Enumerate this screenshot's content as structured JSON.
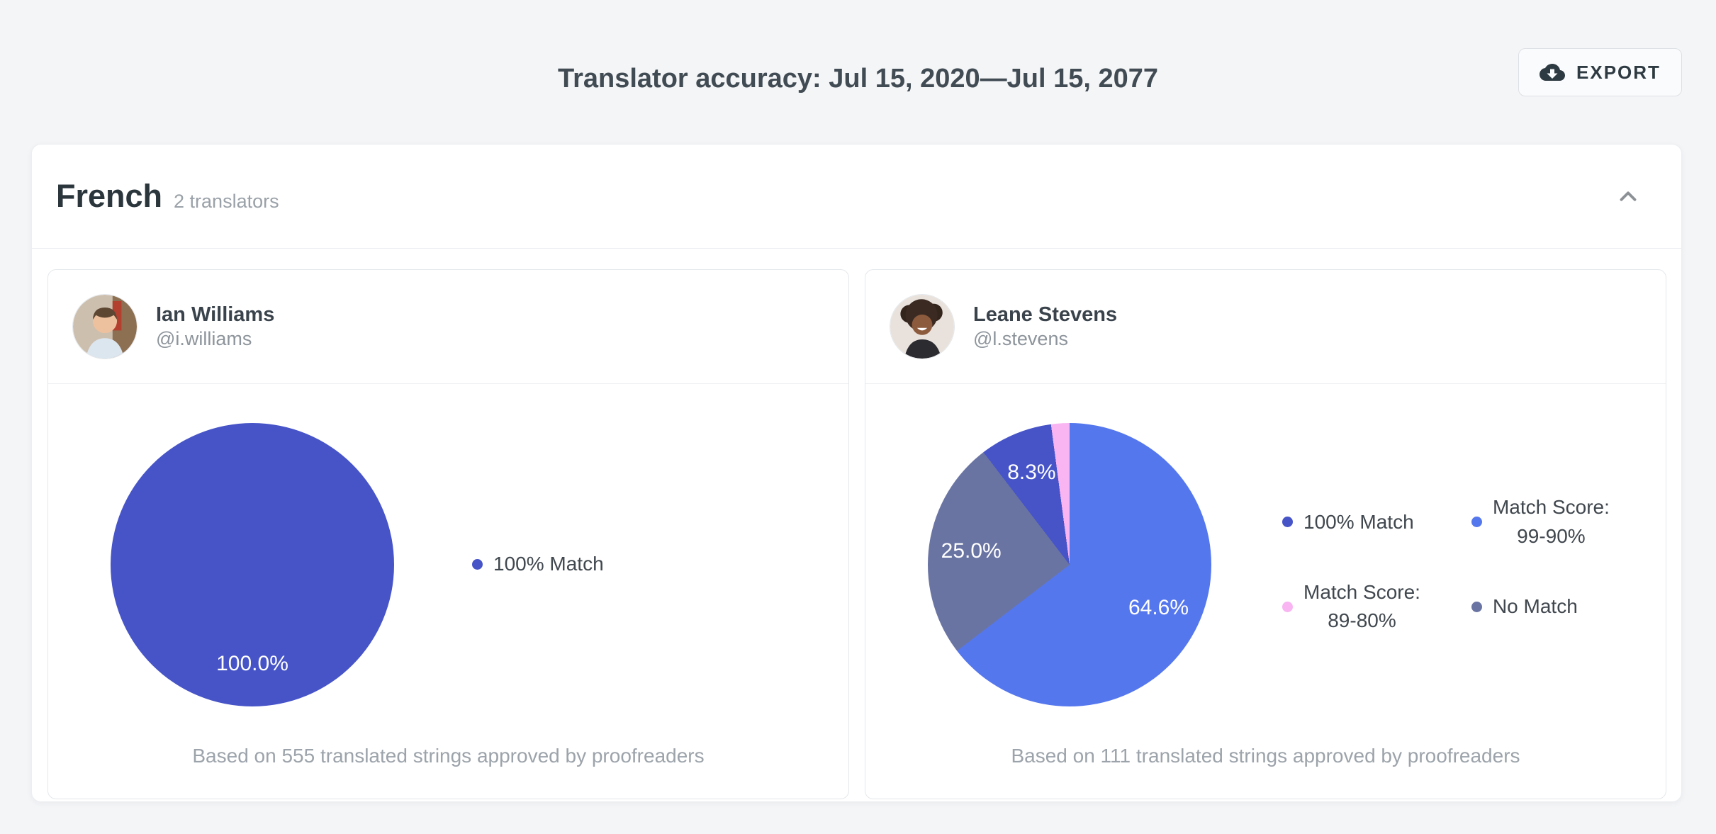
{
  "header": {
    "title": "Translator accuracy: Jul 15, 2020—Jul 15, 2077",
    "export_label": "EXPORT",
    "export_icon": "cloud-download-icon"
  },
  "language": {
    "name": "French",
    "translators_label": "2 translators",
    "collapse_icon": "chevron-up-icon"
  },
  "colors": {
    "match_100": "#4654C8",
    "match_99_90": "#5577EE",
    "match_89_80": "#F8B5F2",
    "no_match": "#6A74A3",
    "page_background": "#F4F5F7"
  },
  "translators": [
    {
      "name": "Ian Williams",
      "username": "@i.williams",
      "footer": "Based on 555 translated strings approved by proofreaders"
    },
    {
      "name": "Leane Stevens",
      "username": "@l.stevens",
      "footer": "Based on 111 translated strings approved by proofreaders"
    }
  ],
  "chart_data": [
    {
      "type": "pie",
      "translator": "Ian Williams",
      "slices": [
        {
          "name": "100% Match",
          "value": 100.0,
          "label": "100.0%",
          "color": "#4654C8"
        }
      ],
      "legend": [
        {
          "lines": [
            "100% Match"
          ],
          "color": "#4654C8"
        }
      ],
      "legend_position": "right"
    },
    {
      "type": "pie",
      "translator": "Leane Stevens",
      "slices": [
        {
          "name": "Match Score: 99-90%",
          "value": 64.6,
          "label": "64.6%",
          "color": "#5577EE"
        },
        {
          "name": "No Match",
          "value": 25.0,
          "label": "25.0%",
          "color": "#6A74A3"
        },
        {
          "name": "100% Match",
          "value": 8.3,
          "label": "8.3%",
          "color": "#4654C8"
        },
        {
          "name": "Match Score: 89-80%",
          "value": 2.1,
          "label": "",
          "color": "#F8B5F2"
        }
      ],
      "legend": [
        {
          "lines": [
            "100% Match"
          ],
          "color": "#4654C8"
        },
        {
          "lines": [
            "Match Score:",
            "99-90%"
          ],
          "color": "#5577EE"
        },
        {
          "lines": [
            "Match Score:",
            "89-80%"
          ],
          "color": "#F8B5F2"
        },
        {
          "lines": [
            "No Match"
          ],
          "color": "#6A74A3"
        }
      ],
      "legend_position": "right"
    }
  ]
}
